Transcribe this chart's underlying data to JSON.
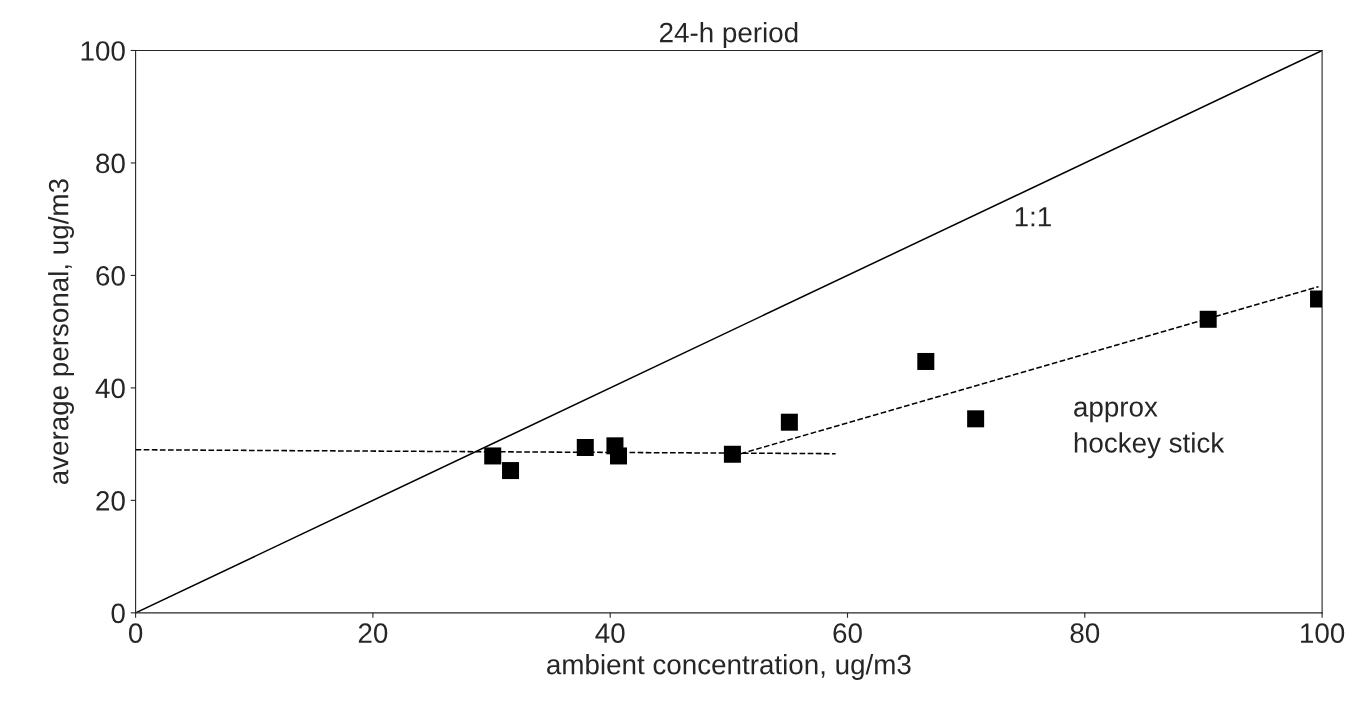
{
  "chart_data": {
    "type": "scatter",
    "title": "24-h period",
    "xlabel": "ambient concentration, ug/m3",
    "ylabel": "average personal, ug/m3",
    "xlim": [
      0,
      100
    ],
    "ylim": [
      0,
      100
    ],
    "xticks": [
      0,
      20,
      40,
      60,
      80,
      100
    ],
    "yticks": [
      0,
      20,
      40,
      60,
      80,
      100
    ],
    "grid": false,
    "series": [
      {
        "color": "#000000",
        "marker": "square",
        "x": [
          30.1,
          31.6,
          37.9,
          40.4,
          40.7,
          50.3,
          55.1,
          66.6,
          70.8,
          90.4,
          99.7
        ],
        "values": [
          27.9,
          25.3,
          29.4,
          29.7,
          27.9,
          28.2,
          33.9,
          44.7,
          34.5,
          52.2,
          55.8
        ]
      },
      {
        "type": "line",
        "color": "#000000",
        "line_style": "solid",
        "x": [
          0,
          100
        ],
        "values": [
          0,
          100
        ]
      },
      {
        "type": "line",
        "color": "#000000",
        "line_style": "dashed",
        "x": [
          0,
          59
        ],
        "values": [
          29,
          28.3
        ]
      },
      {
        "type": "line",
        "color": "#000000",
        "line_style": "dashed",
        "x": [
          51,
          99.7
        ],
        "values": [
          28.3,
          58
        ]
      }
    ],
    "annotations": [
      "1:1",
      "approx\nhockey stick"
    ]
  }
}
